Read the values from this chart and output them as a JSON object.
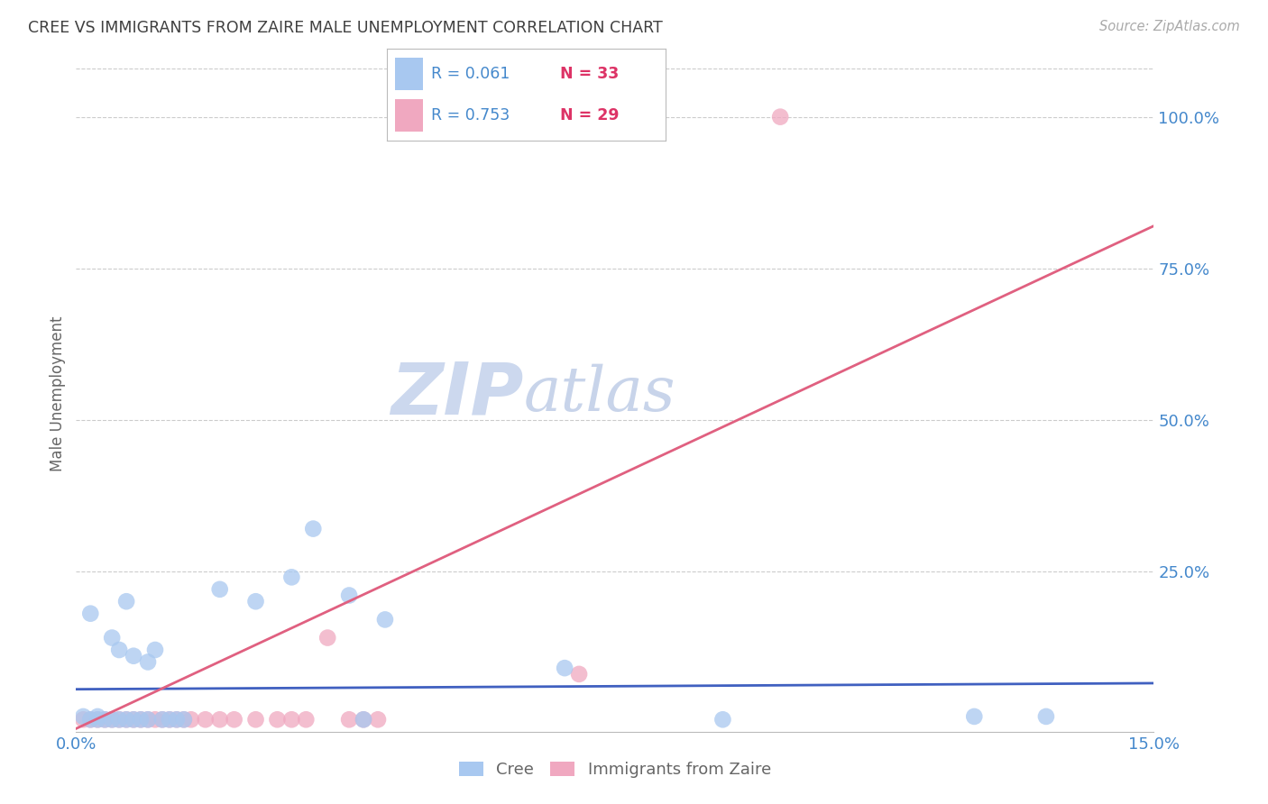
{
  "title": "CREE VS IMMIGRANTS FROM ZAIRE MALE UNEMPLOYMENT CORRELATION CHART",
  "source": "Source: ZipAtlas.com",
  "ylabel": "Male Unemployment",
  "xlim": [
    0.0,
    0.15
  ],
  "ylim": [
    -0.015,
    1.1
  ],
  "xticks": [
    0.0,
    0.0375,
    0.075,
    0.1125,
    0.15
  ],
  "xticklabels": [
    "0.0%",
    "",
    "",
    "",
    "15.0%"
  ],
  "ytick_positions": [
    0.25,
    0.5,
    0.75,
    1.0
  ],
  "ytick_labels": [
    "25.0%",
    "50.0%",
    "75.0%",
    "100.0%"
  ],
  "cree_color": "#a8c8f0",
  "zaire_color": "#f0a8c0",
  "cree_line_color": "#4060c0",
  "zaire_line_color": "#e06080",
  "cree_R": 0.061,
  "cree_N": 33,
  "zaire_R": 0.753,
  "zaire_N": 29,
  "cree_scatter_x": [
    0.001,
    0.002,
    0.002,
    0.003,
    0.003,
    0.004,
    0.005,
    0.005,
    0.006,
    0.006,
    0.007,
    0.007,
    0.008,
    0.008,
    0.009,
    0.01,
    0.01,
    0.011,
    0.012,
    0.013,
    0.014,
    0.015,
    0.02,
    0.025,
    0.03,
    0.033,
    0.038,
    0.04,
    0.043,
    0.068,
    0.09,
    0.125,
    0.135
  ],
  "cree_scatter_y": [
    0.01,
    0.005,
    0.18,
    0.005,
    0.01,
    0.005,
    0.005,
    0.14,
    0.005,
    0.12,
    0.005,
    0.2,
    0.005,
    0.11,
    0.005,
    0.005,
    0.1,
    0.12,
    0.005,
    0.005,
    0.005,
    0.005,
    0.22,
    0.2,
    0.24,
    0.32,
    0.21,
    0.005,
    0.17,
    0.09,
    0.005,
    0.01,
    0.01
  ],
  "zaire_scatter_x": [
    0.001,
    0.002,
    0.003,
    0.004,
    0.005,
    0.006,
    0.007,
    0.008,
    0.009,
    0.01,
    0.011,
    0.012,
    0.013,
    0.014,
    0.015,
    0.016,
    0.018,
    0.02,
    0.022,
    0.025,
    0.028,
    0.03,
    0.032,
    0.035,
    0.038,
    0.04,
    0.042,
    0.07,
    0.098
  ],
  "zaire_scatter_y": [
    0.005,
    0.005,
    0.005,
    0.005,
    0.005,
    0.005,
    0.005,
    0.005,
    0.005,
    0.005,
    0.005,
    0.005,
    0.005,
    0.005,
    0.005,
    0.005,
    0.005,
    0.005,
    0.005,
    0.005,
    0.005,
    0.005,
    0.005,
    0.14,
    0.005,
    0.005,
    0.005,
    0.08,
    1.0
  ],
  "cree_trendline": [
    0.0,
    0.15,
    0.055,
    0.065
  ],
  "zaire_trendline": [
    0.0,
    0.15,
    -0.01,
    0.82
  ],
  "watermark_zip_color": "#ccd8ee",
  "watermark_atlas_color": "#c8d4ea",
  "background_color": "#ffffff",
  "grid_color": "#cccccc",
  "title_color": "#404040",
  "axis_label_color": "#666666",
  "tick_label_color": "#4488cc",
  "legend_r_color": "#4488cc",
  "legend_n_color": "#dd3366"
}
